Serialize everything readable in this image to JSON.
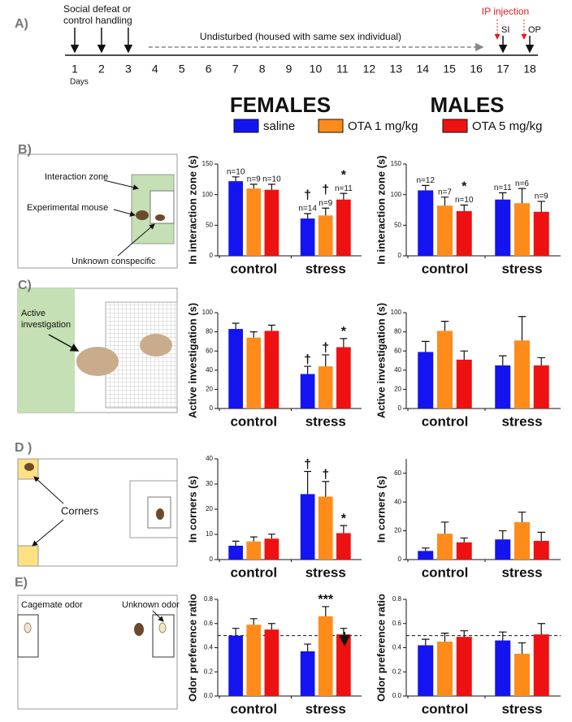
{
  "figure": {
    "panel_labels": [
      "A)",
      "B)",
      "C)",
      "D )",
      "E)"
    ],
    "group_titles": [
      "FEMALES",
      "MALES"
    ]
  },
  "timeline": {
    "event_lines": [
      "Social defeat or",
      "control handling"
    ],
    "days": [
      1,
      2,
      3,
      4,
      5,
      6,
      7,
      8,
      9,
      10,
      11,
      12,
      13,
      14,
      15,
      16,
      17,
      18
    ],
    "days_label": "Days",
    "period_label": "Undisturbed (housed with same sex individual)",
    "injection_label": "IP injection",
    "tests": [
      "SI",
      "OP"
    ]
  },
  "legend": {
    "entries": [
      {
        "name": "saline",
        "color": "#1414f0"
      },
      {
        "name": "OTA 1 mg/kg",
        "color": "#ff8c1a"
      },
      {
        "name": "OTA 5 mg/kg",
        "color": "#ee1111"
      }
    ]
  },
  "diagrams": {
    "B": {
      "labels": [
        "Interaction zone",
        "Experimental mouse",
        "Unknown conspecific"
      ]
    },
    "C": {
      "label_lines": [
        "Active",
        "investigation"
      ]
    },
    "D": {
      "label": "Corners"
    },
    "E": {
      "labels": [
        "Cagemate odor",
        "Unknown odor"
      ]
    }
  },
  "chart_data": [
    {
      "type": "bar",
      "ylabel": "In interaction zone (s)",
      "categories": [
        "control",
        "stress"
      ],
      "ylim": [
        0,
        150
      ],
      "yticks": [
        0,
        50,
        100,
        150
      ],
      "series": [
        {
          "values": [
            122,
            61
          ],
          "errors": [
            7,
            8
          ],
          "n_labels": [
            "n=10",
            "n=14"
          ],
          "annotations": [
            null,
            "†"
          ]
        },
        {
          "values": [
            110,
            66
          ],
          "errors": [
            7,
            12
          ],
          "n_labels": [
            "n=9",
            "n=9"
          ],
          "annotations": [
            null,
            "†"
          ]
        },
        {
          "values": [
            108,
            92
          ],
          "errors": [
            9,
            10
          ],
          "n_labels": [
            "n=10",
            "n=11"
          ],
          "annotations": [
            null,
            "*"
          ]
        }
      ]
    },
    {
      "type": "bar",
      "ylabel": "In interaction zone (s)",
      "categories": [
        "control",
        "stress"
      ],
      "ylim": [
        0,
        150
      ],
      "yticks": [
        0,
        50,
        100,
        150
      ],
      "series": [
        {
          "values": [
            107,
            92
          ],
          "errors": [
            8,
            11
          ],
          "n_labels": [
            "n=12",
            "n=11"
          ],
          "annotations": [
            null,
            null
          ]
        },
        {
          "values": [
            82,
            86
          ],
          "errors": [
            14,
            24
          ],
          "n_labels": [
            "n=7",
            "n=6"
          ],
          "annotations": [
            null,
            null
          ]
        },
        {
          "values": [
            73,
            72
          ],
          "errors": [
            10,
            17
          ],
          "n_labels": [
            "n=10",
            "n=9"
          ],
          "annotations": [
            "*",
            null
          ]
        }
      ]
    },
    {
      "type": "bar",
      "ylabel": "Active investigation (s)",
      "categories": [
        "control",
        "stress"
      ],
      "ylim": [
        0,
        100
      ],
      "yticks": [
        0,
        20,
        40,
        60,
        80,
        100
      ],
      "series": [
        {
          "values": [
            83,
            36
          ],
          "errors": [
            6,
            8
          ],
          "annotations": [
            null,
            "†"
          ]
        },
        {
          "values": [
            74,
            44
          ],
          "errors": [
            6,
            12
          ],
          "annotations": [
            null,
            "†"
          ]
        },
        {
          "values": [
            81,
            64
          ],
          "errors": [
            6,
            9
          ],
          "annotations": [
            null,
            "*"
          ]
        }
      ]
    },
    {
      "type": "bar",
      "ylabel": "Active investigation (s)",
      "categories": [
        "control",
        "stress"
      ],
      "ylim": [
        0,
        100
      ],
      "yticks": [
        0,
        20,
        40,
        60,
        80,
        100
      ],
      "series": [
        {
          "values": [
            59,
            45
          ],
          "errors": [
            11,
            10
          ]
        },
        {
          "values": [
            81,
            71
          ],
          "errors": [
            10,
            25
          ]
        },
        {
          "values": [
            51,
            45
          ],
          "errors": [
            9,
            8
          ]
        }
      ]
    },
    {
      "type": "bar",
      "ylabel": "In corners (s)",
      "categories": [
        "control",
        "stress"
      ],
      "ylim": [
        0,
        40
      ],
      "yticks": [
        0,
        10,
        20,
        30,
        40
      ],
      "series": [
        {
          "values": [
            5.5,
            26
          ],
          "errors": [
            1.8,
            9
          ],
          "annotations": [
            null,
            "†"
          ]
        },
        {
          "values": [
            7.2,
            25
          ],
          "errors": [
            1.8,
            6
          ],
          "annotations": [
            null,
            "†"
          ]
        },
        {
          "values": [
            8.3,
            10.5
          ],
          "errors": [
            1.8,
            3
          ],
          "annotations": [
            null,
            "*"
          ]
        }
      ]
    },
    {
      "type": "bar",
      "ylabel": "In corners (s)",
      "categories": [
        "control",
        "stress"
      ],
      "ylim": [
        0,
        70
      ],
      "yticks": [
        0,
        20,
        40,
        60
      ],
      "series": [
        {
          "values": [
            6,
            14
          ],
          "errors": [
            2,
            6
          ]
        },
        {
          "values": [
            18,
            26
          ],
          "errors": [
            8,
            7
          ]
        },
        {
          "values": [
            12,
            13
          ],
          "errors": [
            3,
            6
          ]
        }
      ]
    },
    {
      "type": "bar",
      "ylabel": "Odor preference ratio",
      "categories": [
        "control",
        "stress"
      ],
      "ylim": [
        0,
        0.8
      ],
      "yticks": [
        {
          "value": 0,
          "label": "0.0"
        },
        0.2,
        0.4,
        0.6,
        0.8
      ],
      "reference_line": 0.5,
      "series": [
        {
          "values": [
            0.5,
            0.37
          ],
          "errors": [
            0.06,
            0.06
          ],
          "annotations": [
            null,
            null
          ]
        },
        {
          "values": [
            0.59,
            0.66
          ],
          "errors": [
            0.05,
            0.08
          ],
          "annotations": [
            null,
            "***"
          ]
        },
        {
          "values": [
            0.55,
            0.51
          ],
          "errors": [
            0.05,
            0.05
          ],
          "annotations": [
            null,
            null
          ]
        }
      ]
    },
    {
      "type": "bar",
      "ylabel": "Odor preference ratio",
      "categories": [
        "control",
        "stress"
      ],
      "ylim": [
        0,
        0.8
      ],
      "yticks": [
        {
          "value": 0,
          "label": "0.0"
        },
        0.2,
        0.4,
        0.6,
        0.8
      ],
      "reference_line": 0.5,
      "series": [
        {
          "values": [
            0.42,
            0.46
          ],
          "errors": [
            0.05,
            0.07
          ]
        },
        {
          "values": [
            0.45,
            0.35
          ],
          "errors": [
            0.07,
            0.09
          ]
        },
        {
          "values": [
            0.49,
            0.51
          ],
          "errors": [
            0.05,
            0.09
          ]
        }
      ]
    }
  ]
}
